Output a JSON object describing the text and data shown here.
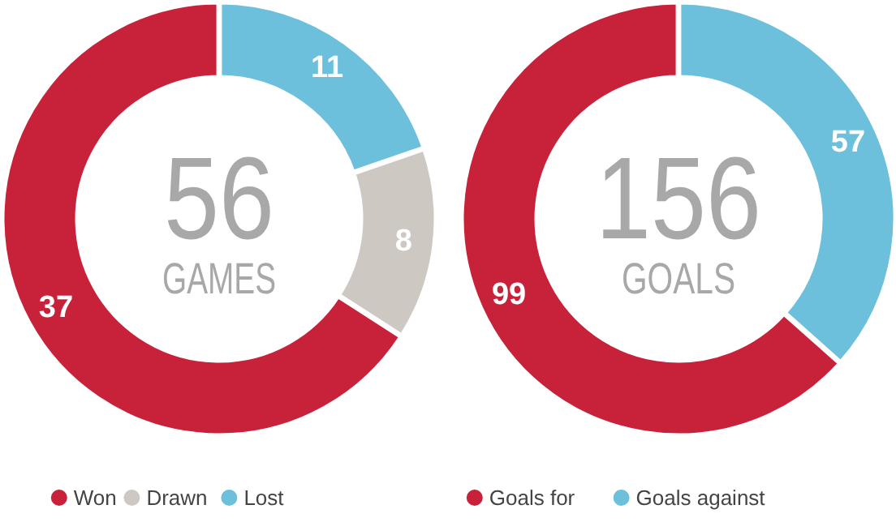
{
  "chart_data": [
    {
      "type": "donut",
      "title": "56",
      "subtitle": "GAMES",
      "categories": [
        "Won",
        "Drawn",
        "Lost"
      ],
      "values": [
        37,
        8,
        11
      ],
      "colors": [
        "#c8213a",
        "#cdc8c2",
        "#6cc0dc"
      ],
      "data_labels": true,
      "legend": "bottom"
    },
    {
      "type": "donut",
      "title": "156",
      "subtitle": "GOALS",
      "categories": [
        "Goals for",
        "Goals against"
      ],
      "values": [
        99,
        57
      ],
      "colors": [
        "#c8213a",
        "#6cc0dc"
      ],
      "data_labels": true,
      "legend": "bottom"
    }
  ]
}
